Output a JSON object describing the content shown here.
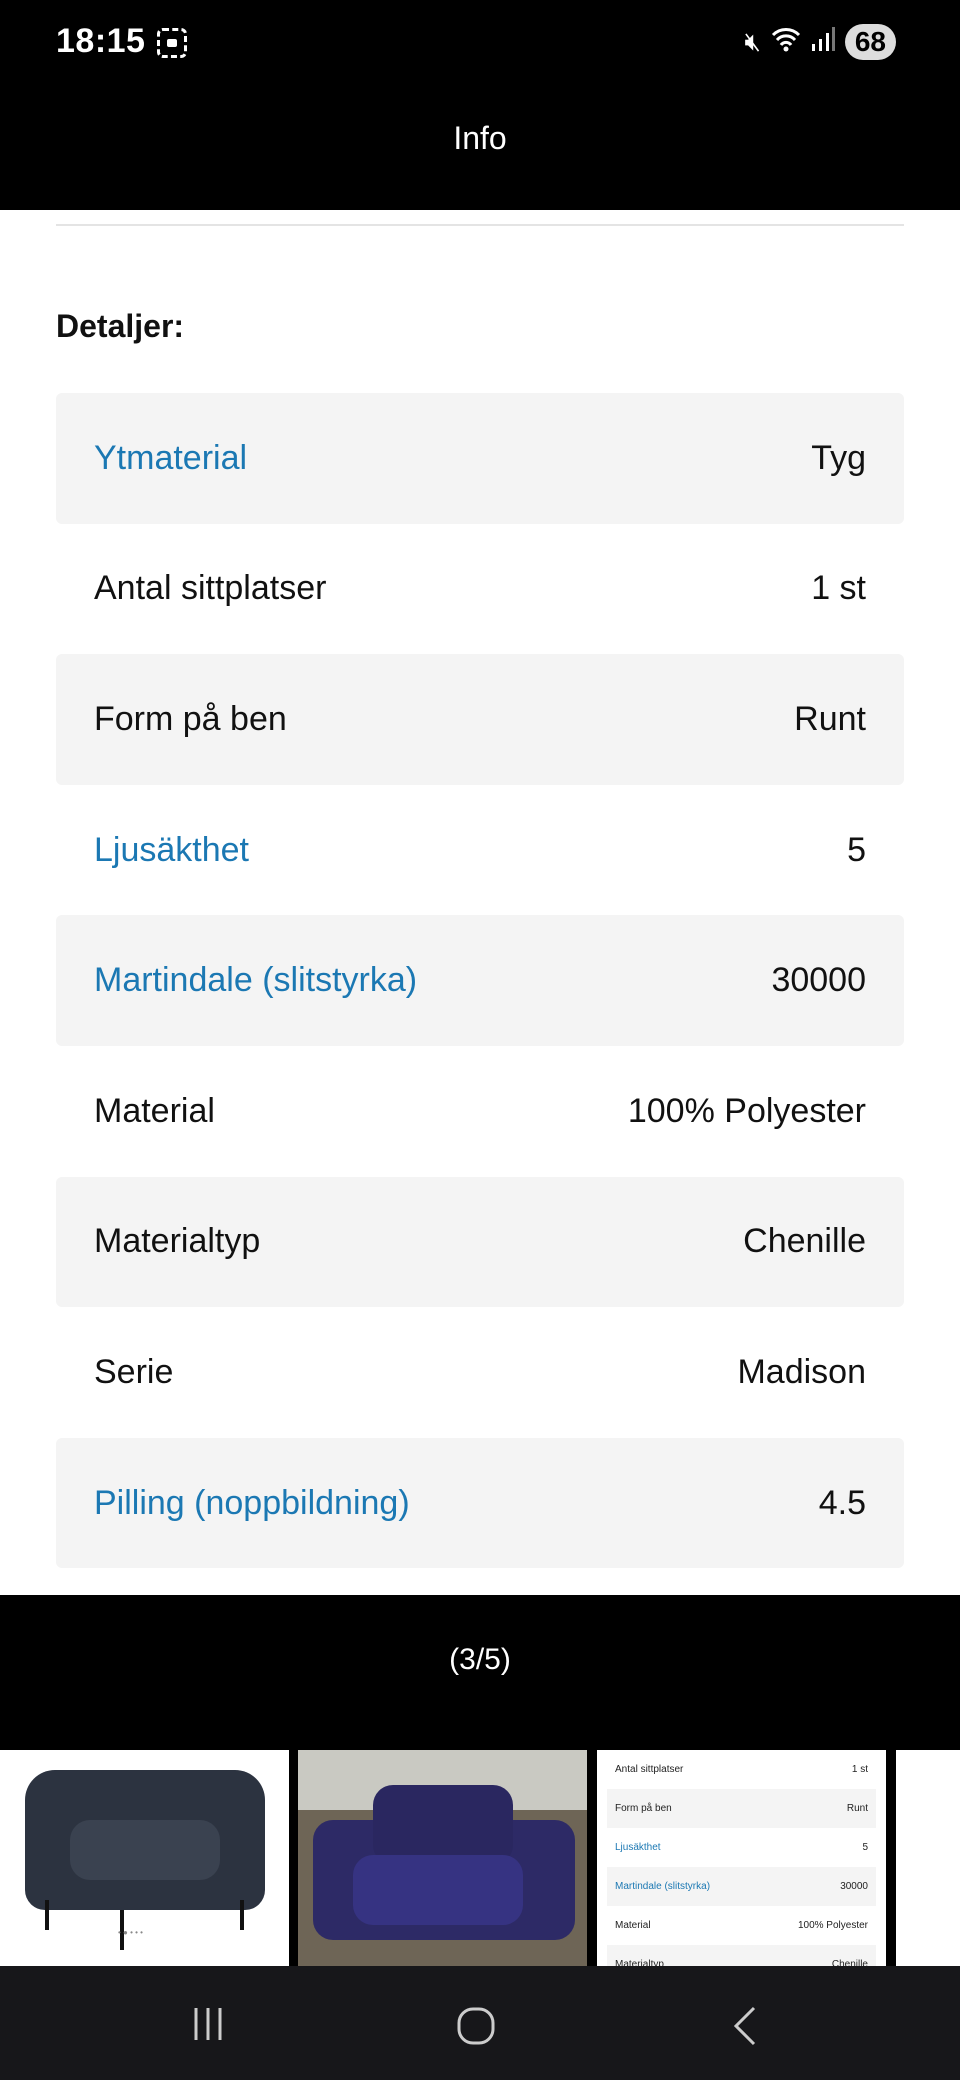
{
  "status_bar": {
    "time": "18:15",
    "battery": "68",
    "icons": [
      "screenshot-icon",
      "mute-icon",
      "wifi-icon",
      "signal-icon"
    ]
  },
  "header": {
    "title": "Info"
  },
  "details": {
    "heading": "Detaljer:",
    "rows": [
      {
        "label": "Ytmaterial",
        "value": "Tyg",
        "link": true
      },
      {
        "label": "Antal sittplatser",
        "value": "1 st",
        "link": false
      },
      {
        "label": "Form på ben",
        "value": "Runt",
        "link": false
      },
      {
        "label": "Ljusäkthet",
        "value": "5",
        "link": true
      },
      {
        "label": "Martindale (slitstyrka)",
        "value": "30000",
        "link": true
      },
      {
        "label": "Material",
        "value": "100% Polyester",
        "link": false
      },
      {
        "label": "Materialtyp",
        "value": "Chenille",
        "link": false
      },
      {
        "label": "Serie",
        "value": "Madison",
        "link": false
      },
      {
        "label": "Pilling (noppbildning)",
        "value": "4.5",
        "link": true
      }
    ]
  },
  "gallery": {
    "counter": "(3/5)",
    "thumb3_rows": [
      {
        "label": "Antal sittplatser",
        "value": "1 st"
      },
      {
        "label": "Form på ben",
        "value": "Runt"
      },
      {
        "label": "Ljusäkthet",
        "value": "5"
      },
      {
        "label": "Martindale (slitstyrka)",
        "value": "30000"
      },
      {
        "label": "Material",
        "value": "100% Polyester"
      },
      {
        "label": "Materialtyp",
        "value": "Chenille"
      }
    ]
  },
  "colors": {
    "link": "#1b78b3",
    "row_shade": "#f4f4f4",
    "nav": "#17171a"
  }
}
